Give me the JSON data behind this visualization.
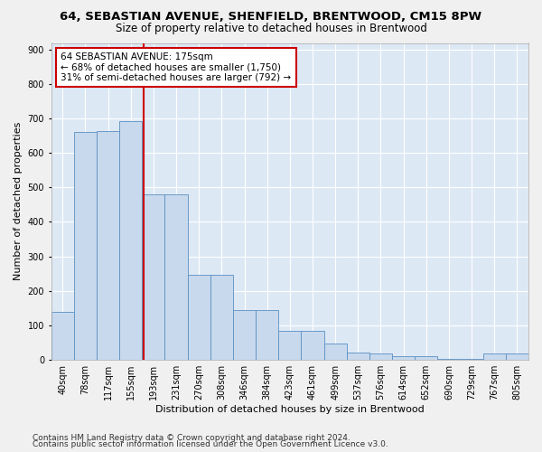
{
  "title1": "64, SEBASTIAN AVENUE, SHENFIELD, BRENTWOOD, CM15 8PW",
  "title2": "Size of property relative to detached houses in Brentwood",
  "xlabel": "Distribution of detached houses by size in Brentwood",
  "ylabel": "Number of detached properties",
  "categories": [
    "40sqm",
    "78sqm",
    "117sqm",
    "155sqm",
    "193sqm",
    "231sqm",
    "270sqm",
    "308sqm",
    "346sqm",
    "384sqm",
    "423sqm",
    "461sqm",
    "499sqm",
    "537sqm",
    "576sqm",
    "614sqm",
    "652sqm",
    "690sqm",
    "729sqm",
    "767sqm",
    "805sqm"
  ],
  "values": [
    138,
    662,
    665,
    693,
    481,
    481,
    245,
    245,
    145,
    145,
    84,
    84,
    47,
    20,
    17,
    10,
    10,
    2,
    2,
    17,
    17
  ],
  "bar_color": "#c8d9ed",
  "bar_edge_color": "#5a8fc2",
  "vline_color": "#cc0000",
  "vline_x": 3.55,
  "annotation_text": "64 SEBASTIAN AVENUE: 175sqm\n← 68% of detached houses are smaller (1,750)\n31% of semi-detached houses are larger (792) →",
  "annotation_box_color": "#ffffff",
  "annotation_box_edge": "#cc0000",
  "annotation_fontsize": 7.5,
  "ylim": [
    0,
    920
  ],
  "yticks": [
    0,
    100,
    200,
    300,
    400,
    500,
    600,
    700,
    800,
    900
  ],
  "background_color": "#dde8f5",
  "grid_color": "#ffffff",
  "footer1": "Contains HM Land Registry data © Crown copyright and database right 2024.",
  "footer2": "Contains public sector information licensed under the Open Government Licence v3.0.",
  "title1_fontsize": 9.5,
  "title2_fontsize": 8.5,
  "xlabel_fontsize": 8,
  "ylabel_fontsize": 8,
  "tick_fontsize": 7,
  "footer_fontsize": 6.5
}
